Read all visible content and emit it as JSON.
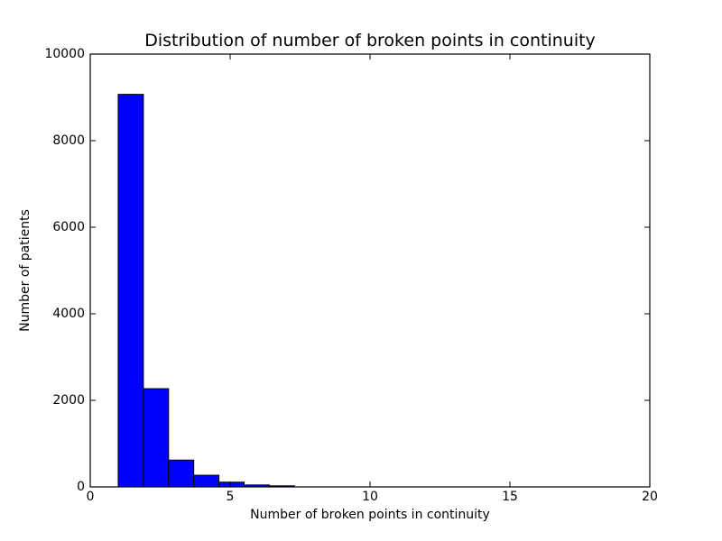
{
  "chart_data": {
    "type": "bar",
    "subtype": "histogram",
    "title": "Distribution of number of broken points in continuity",
    "xlabel": "Number of broken points in continuity",
    "ylabel": "Number of patients",
    "xlim": [
      0,
      20
    ],
    "ylim": [
      0,
      10000
    ],
    "xticks": [
      0,
      5,
      10,
      15,
      20
    ],
    "yticks": [
      0,
      2000,
      4000,
      6000,
      8000,
      10000
    ],
    "grid": false,
    "legend": "none",
    "tick_direction": "in",
    "bar_color": "#0000ff",
    "bar_edge_color": "#000000",
    "axis_color": "#000000",
    "bin_edges": [
      1.0,
      1.9,
      2.8,
      3.7,
      4.6,
      5.5,
      6.4,
      7.3,
      8.2,
      9.1,
      10.0
    ],
    "counts": [
      9070,
      2270,
      620,
      270,
      110,
      45,
      25,
      0,
      0,
      0
    ]
  }
}
